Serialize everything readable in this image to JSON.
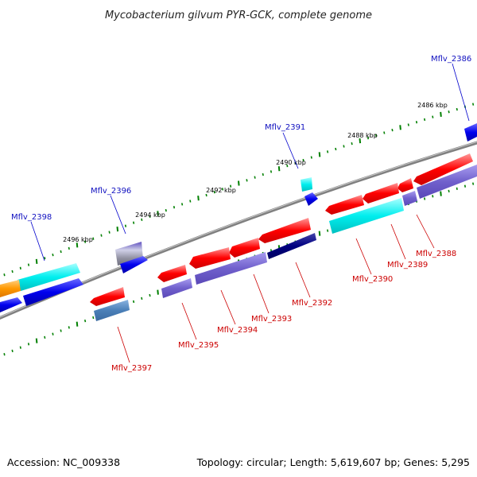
{
  "title": "Mycobacterium gilvum PYR-GCK, complete genome",
  "accession_text": "Accession: NC_009338",
  "summary_text": "Topology: circular; Length: 5,619,607 bp; Genes: 5,295",
  "kbp_labels": [
    "2486 kbp",
    "2488 kbp",
    "2490 kbp",
    "2492 kbp",
    "2494 kbp",
    "2496 kbp"
  ],
  "gene_labels_forward": [
    "Mflv_2386",
    "Mflv_2391",
    "Mflv_2396",
    "Mflv_2398"
  ],
  "gene_labels_reverse": [
    "Mflv_2388",
    "Mflv_2389",
    "Mflv_2390",
    "Mflv_2392",
    "Mflv_2393",
    "Mflv_2394",
    "Mflv_2395",
    "Mflv_2397"
  ],
  "colors": {
    "backbone": "#808080",
    "label_forward": "#1010c0",
    "label_reverse": "#cc0000",
    "gene_red": "#ff0000",
    "gene_blue": "#0000ee",
    "gene_cyan": "#00eeee",
    "gene_purple": "#7060cc",
    "gene_orange": "#ff9900",
    "tick_green": "#008000"
  }
}
